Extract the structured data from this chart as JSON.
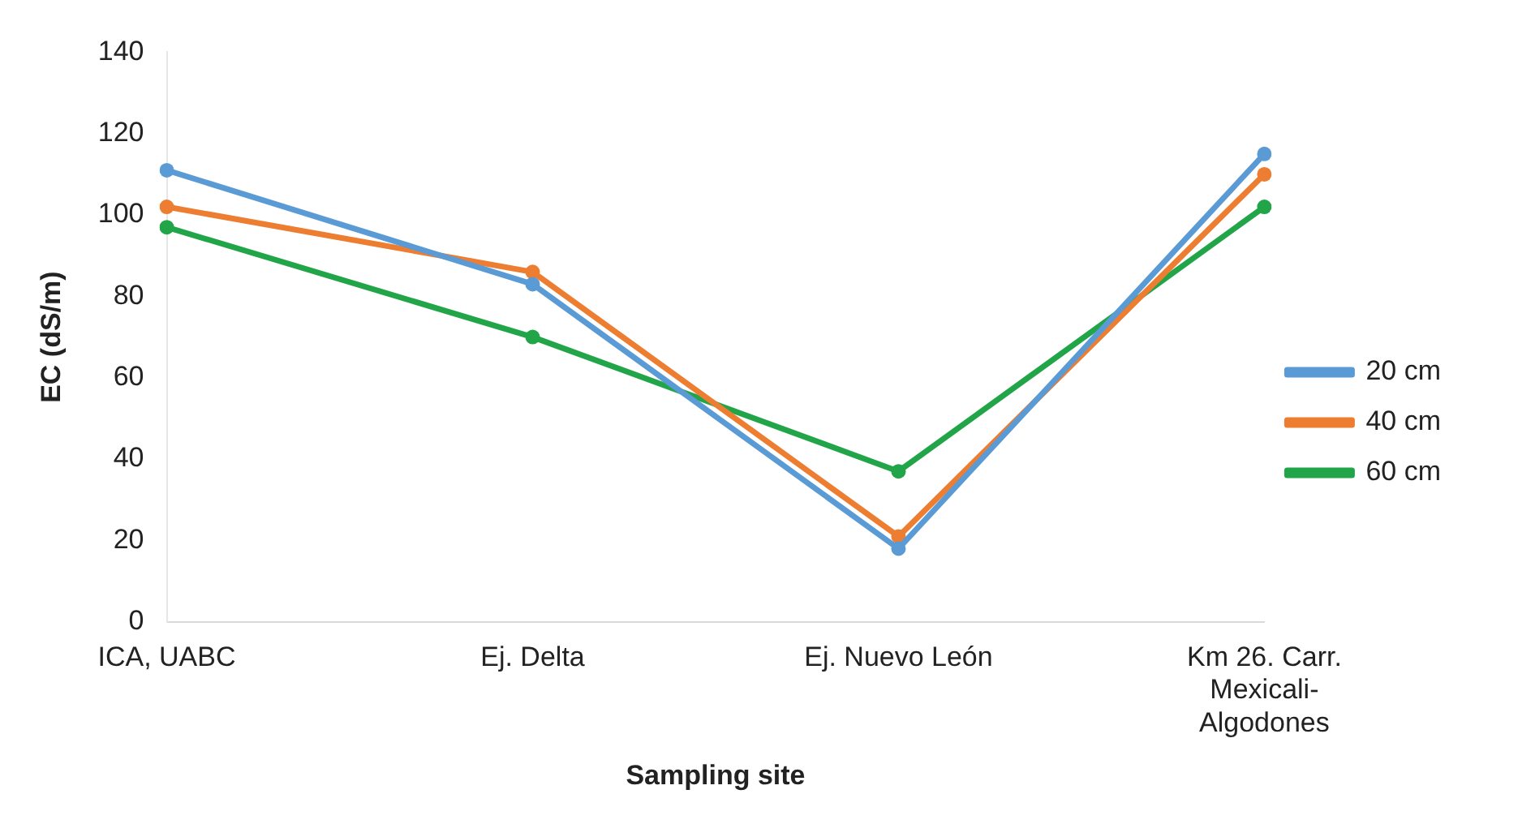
{
  "chart_data": {
    "type": "line",
    "xlabel": "Sampling site",
    "ylabel": "EC (dS/m)",
    "categories": [
      "ICA, UABC",
      "Ej. Delta",
      "Ej. Nuevo León",
      "Km 26. Carr. Mexicali-Algodones"
    ],
    "series": [
      {
        "name": "20 cm",
        "color": "#5b9bd5",
        "values": [
          111,
          83,
          18,
          115
        ]
      },
      {
        "name": "40 cm",
        "color": "#ed7d31",
        "values": [
          102,
          86,
          21,
          110
        ]
      },
      {
        "name": "60 cm",
        "color": "#21a548",
        "values": [
          97,
          70,
          37,
          102
        ]
      }
    ],
    "ylim": [
      0,
      140
    ],
    "yticks": [
      0,
      20,
      40,
      60,
      80,
      100,
      120,
      140
    ],
    "grid": false,
    "legend": "right",
    "marker": "circle",
    "line_style": "solid"
  }
}
